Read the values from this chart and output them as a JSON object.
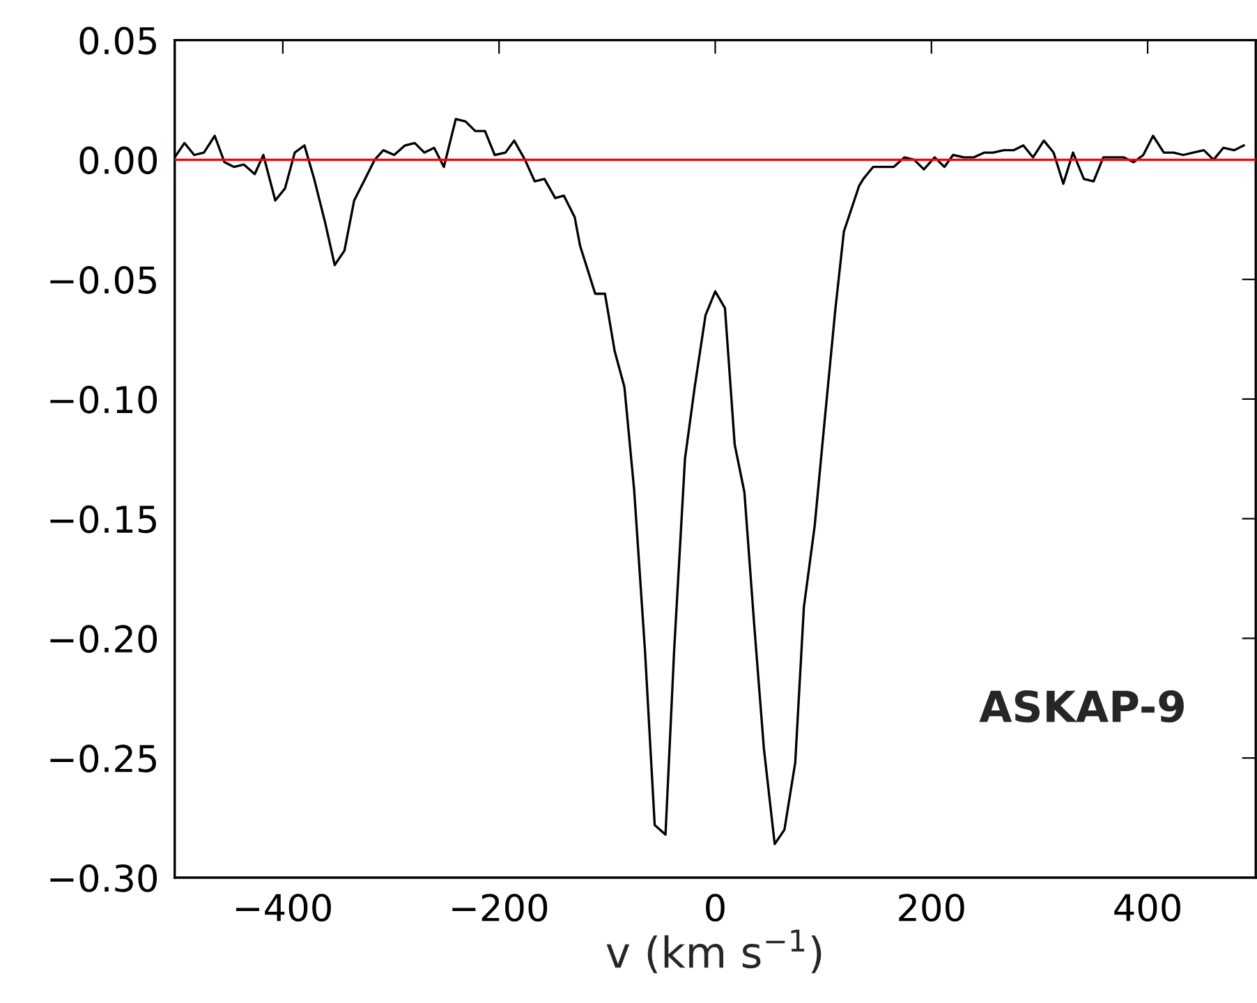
{
  "chart_data": {
    "type": "line",
    "xlabel": "v (km s$^{−1}$)",
    "x": [
      -500,
      -491,
      -482,
      -473,
      -463,
      -454,
      -445,
      -436,
      -426,
      -418,
      -407,
      -398,
      -389,
      -380,
      -371,
      -361,
      -352,
      -343,
      -334,
      -325,
      -315,
      -307,
      -297,
      -287,
      -278,
      -269,
      -260,
      -251,
      -240,
      -231,
      -222,
      -213,
      -204,
      -194,
      -186,
      -176,
      -167,
      -158,
      -148,
      -140,
      -130,
      -125,
      -111,
      -102,
      -93,
      -84,
      -75,
      -65,
      -56,
      -46,
      -38,
      -28,
      -19,
      -9,
      0,
      9,
      18,
      27,
      36,
      45,
      55,
      64,
      74,
      82,
      92,
      101,
      111,
      119,
      133,
      137,
      146,
      165,
      175,
      184,
      193,
      203,
      212,
      220,
      230,
      239,
      249,
      257,
      267,
      276,
      285,
      294,
      304,
      313,
      322,
      331,
      341,
      350,
      359,
      369,
      378,
      387,
      396,
      405,
      415,
      424,
      433,
      442,
      452,
      461,
      470,
      480,
      489
    ],
    "series": [
      {
        "color": "#000000",
        "values": [
          0.001,
          0.007,
          0.002,
          0.003,
          0.01,
          -0.001,
          -0.003,
          -0.002,
          -0.006,
          0.002,
          -0.017,
          -0.012,
          0.003,
          0.006,
          -0.008,
          -0.026,
          -0.044,
          -0.038,
          -0.017,
          -0.009,
          0.0,
          0.004,
          0.002,
          0.006,
          0.007,
          0.003,
          0.005,
          -0.003,
          0.017,
          0.016,
          0.012,
          0.012,
          0.002,
          0.003,
          0.008,
          0.0,
          -0.009,
          -0.008,
          -0.016,
          -0.015,
          -0.024,
          -0.036,
          -0.056,
          -0.056,
          -0.08,
          -0.095,
          -0.138,
          -0.205,
          -0.278,
          -0.282,
          -0.205,
          -0.125,
          -0.095,
          -0.065,
          -0.055,
          -0.062,
          -0.119,
          -0.139,
          -0.194,
          -0.246,
          -0.286,
          -0.28,
          -0.252,
          -0.187,
          -0.153,
          -0.11,
          -0.063,
          -0.03,
          -0.011,
          -0.008,
          -0.003,
          -0.003,
          0.001,
          0.0,
          -0.004,
          0.001,
          -0.003,
          0.002,
          0.001,
          0.001,
          0.003,
          0.003,
          0.004,
          0.004,
          0.006,
          0.001,
          0.008,
          0.003,
          -0.01,
          0.003,
          -0.008,
          -0.009,
          0.001,
          0.001,
          0.001,
          -0.001,
          0.002,
          0.01,
          0.003,
          0.003,
          0.002,
          0.003,
          0.004,
          0.0,
          0.005,
          0.004,
          0.006
        ]
      }
    ],
    "xlim": [
      -500,
      500
    ],
    "xticks": [
      {
        "value": -400,
        "label": "−400"
      },
      {
        "value": -200,
        "label": "−200"
      },
      0,
      200,
      400
    ],
    "ylim": [
      -0.3,
      0.05
    ],
    "yticks": [
      {
        "value": -0.3,
        "label": "−0.30"
      },
      {
        "value": -0.25,
        "label": "−0.25"
      },
      {
        "value": -0.2,
        "label": "−0.20"
      },
      {
        "value": -0.15,
        "label": "−0.15"
      },
      {
        "value": -0.1,
        "label": "−0.10"
      },
      {
        "value": -0.05,
        "label": "−0.05"
      },
      {
        "value": 0.0,
        "label": "0.00"
      },
      {
        "value": 0.05,
        "label": "0.05"
      }
    ],
    "ref_lines": [
      {
        "axis": "y",
        "value": 0,
        "color": "#ff0000"
      }
    ],
    "annotations": [
      "ASKAP-9"
    ],
    "grid": false,
    "legend": false
  }
}
